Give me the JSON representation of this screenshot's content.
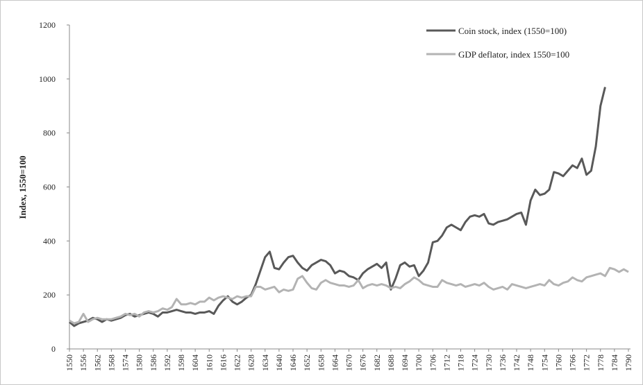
{
  "chart_data": {
    "type": "line",
    "y_label": "Index, 1550=100",
    "x": [
      1550,
      1552,
      1554,
      1556,
      1558,
      1560,
      1562,
      1564,
      1566,
      1568,
      1570,
      1572,
      1574,
      1576,
      1578,
      1580,
      1582,
      1584,
      1586,
      1588,
      1590,
      1592,
      1594,
      1596,
      1598,
      1600,
      1602,
      1604,
      1606,
      1608,
      1610,
      1612,
      1614,
      1616,
      1618,
      1620,
      1622,
      1624,
      1626,
      1628,
      1630,
      1632,
      1634,
      1636,
      1638,
      1640,
      1642,
      1644,
      1646,
      1648,
      1650,
      1652,
      1654,
      1656,
      1658,
      1660,
      1662,
      1664,
      1666,
      1668,
      1670,
      1672,
      1674,
      1676,
      1678,
      1680,
      1682,
      1684,
      1686,
      1688,
      1690,
      1692,
      1694,
      1696,
      1698,
      1700,
      1702,
      1704,
      1706,
      1708,
      1710,
      1712,
      1714,
      1716,
      1718,
      1720,
      1722,
      1724,
      1726,
      1728,
      1730,
      1732,
      1734,
      1736,
      1738,
      1740,
      1742,
      1744,
      1746,
      1748,
      1750,
      1752,
      1754,
      1756,
      1758,
      1760,
      1762,
      1764,
      1766,
      1768,
      1770,
      1772,
      1774,
      1776,
      1778,
      1780,
      1782,
      1784,
      1786,
      1788,
      1790
    ],
    "series": [
      {
        "name": "Coin stock, index (1550=100)",
        "color": "#595959",
        "values": [
          100,
          85,
          95,
          100,
          105,
          115,
          110,
          100,
          110,
          105,
          110,
          115,
          125,
          130,
          120,
          125,
          130,
          135,
          130,
          120,
          135,
          135,
          140,
          145,
          140,
          135,
          135,
          130,
          135,
          135,
          140,
          130,
          160,
          180,
          195,
          175,
          165,
          175,
          190,
          200,
          240,
          290,
          340,
          360,
          300,
          295,
          320,
          340,
          345,
          320,
          300,
          290,
          310,
          320,
          330,
          325,
          310,
          280,
          290,
          285,
          270,
          265,
          255,
          280,
          295,
          305,
          315,
          300,
          320,
          220,
          260,
          310,
          320,
          305,
          310,
          270,
          290,
          320,
          395,
          400,
          420,
          450,
          460,
          450,
          440,
          470,
          490,
          495,
          490,
          500,
          465,
          460,
          470,
          475,
          480,
          490,
          500,
          505,
          460,
          550,
          590,
          570,
          575,
          590,
          655,
          650,
          640,
          660,
          680,
          670,
          705,
          645,
          660,
          750,
          900,
          970,
          null,
          null,
          null,
          null,
          null
        ]
      },
      {
        "name": "GDP deflator, index 1550=100",
        "color": "#b3b3b3",
        "values": [
          105,
          95,
          100,
          130,
          100,
          110,
          115,
          110,
          110,
          110,
          115,
          120,
          130,
          125,
          130,
          120,
          135,
          140,
          135,
          140,
          150,
          145,
          155,
          185,
          165,
          165,
          170,
          165,
          175,
          175,
          190,
          180,
          190,
          195,
          190,
          185,
          195,
          190,
          195,
          195,
          230,
          230,
          220,
          225,
          230,
          210,
          220,
          215,
          220,
          260,
          270,
          245,
          225,
          220,
          245,
          255,
          245,
          240,
          235,
          235,
          230,
          235,
          255,
          225,
          235,
          240,
          235,
          240,
          235,
          225,
          230,
          225,
          240,
          250,
          265,
          255,
          240,
          235,
          230,
          230,
          255,
          245,
          240,
          235,
          240,
          230,
          235,
          240,
          235,
          245,
          230,
          220,
          225,
          230,
          220,
          240,
          235,
          230,
          225,
          230,
          235,
          240,
          235,
          255,
          240,
          235,
          245,
          250,
          265,
          255,
          250,
          265,
          270,
          275,
          280,
          270,
          300,
          295,
          285,
          295,
          285
        ]
      }
    ],
    "xlim": [
      1550,
      1790
    ],
    "xticks": [
      1550,
      1556,
      1562,
      1568,
      1574,
      1580,
      1586,
      1592,
      1598,
      1604,
      1610,
      1616,
      1622,
      1628,
      1634,
      1640,
      1646,
      1652,
      1658,
      1664,
      1670,
      1676,
      1682,
      1688,
      1694,
      1700,
      1706,
      1712,
      1718,
      1724,
      1730,
      1736,
      1742,
      1748,
      1754,
      1760,
      1766,
      1772,
      1778,
      1784,
      1790
    ],
    "ylim": [
      0,
      1200
    ],
    "yticks": [
      0,
      200,
      400,
      600,
      800,
      1000,
      1200
    ],
    "grid": false
  }
}
